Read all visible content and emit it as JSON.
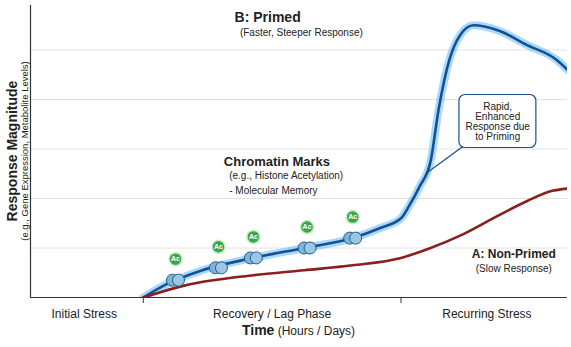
{
  "chart_data": {
    "type": "line",
    "x_label": "Time (Hours / Days)",
    "y_label": "Response Magnitude",
    "y_label_note": "(e.g., Gene Expression, Metabolite Levels)",
    "xlim": [
      0,
      100
    ],
    "ylim": [
      0,
      118
    ],
    "xticks": [
      {
        "value": 10,
        "label": "Initial Stress"
      },
      {
        "value": 45,
        "label": "Recovery / Lag Phase"
      },
      {
        "value": 85,
        "label": "Recurring Stress"
      }
    ],
    "phase_boundaries": [
      21,
      69
    ],
    "yticks": [
      20,
      40,
      60,
      80,
      100
    ],
    "grid": true,
    "tick_labels": "x",
    "series": [
      {
        "name": "B: Primed",
        "description": "(Faster, Steeper Response)",
        "color": "#1a4f8f",
        "x": [
          21,
          25,
          32,
          41.5,
          51,
          60,
          65,
          69,
          70.5,
          72.5,
          74.5,
          76,
          78,
          80,
          82.5,
          87,
          92.5,
          98,
          100
        ],
        "values": [
          0,
          5,
          11,
          16,
          20,
          24,
          28,
          32,
          37,
          45,
          55,
          76,
          96,
          106,
          110,
          108,
          102,
          96,
          92
        ]
      },
      {
        "name": "A: Non-Primed",
        "description": "(Slow Response)",
        "color": "#8b1e1e",
        "x": [
          21,
          29,
          41.5,
          51,
          60,
          69,
          74.5,
          80,
          87,
          92.5,
          97,
          100
        ],
        "values": [
          0,
          5,
          9,
          11,
          13,
          16,
          20,
          25,
          33,
          39,
          43,
          44
        ]
      }
    ],
    "chromatin_marks": {
      "label": "Ac",
      "x": [
        27,
        35,
        41.5,
        51.5,
        60
      ],
      "y": [
        7,
        12,
        16,
        20,
        24
      ]
    },
    "annotations": [
      {
        "title": "Chromatin Marks",
        "lines": [
          "(e.g., Histone Acetylation)",
          "- Molecular Memory"
        ]
      },
      {
        "text": "Rapid, Enhanced Response due to Priming"
      }
    ]
  }
}
